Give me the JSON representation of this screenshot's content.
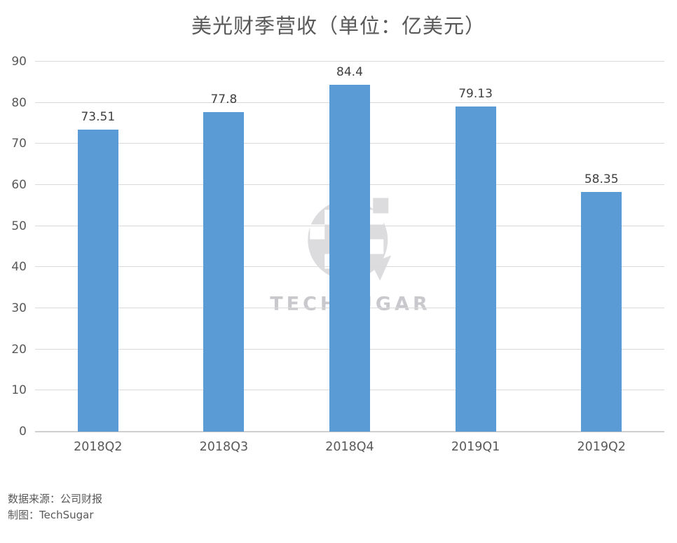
{
  "title": "美光财季营收（单位：亿美元）",
  "watermark": {
    "text": "TECHSUGAR"
  },
  "footer": {
    "source": "数据来源：公司财报",
    "credit": "制图：TechSugar"
  },
  "colors": {
    "bar": "#5B9BD5",
    "grid": "#D9D9D9",
    "axis": "#C6C6C6",
    "tick_label": "#595959",
    "data_label": "#404040",
    "title": "#595959",
    "watermark": "#C9C9CD",
    "watermark_fill": "#DCDCDF"
  },
  "chart_data": {
    "type": "bar",
    "title": "美光财季营收（单位：亿美元）",
    "categories": [
      "2018Q2",
      "2018Q3",
      "2018Q4",
      "2019Q1",
      "2019Q2"
    ],
    "values": [
      73.51,
      77.8,
      84.4,
      79.13,
      58.35
    ],
    "labels": [
      "73.51",
      "77.8",
      "84.4",
      "79.13",
      "58.35"
    ],
    "xlabel": "",
    "ylabel": "",
    "ylim": [
      0,
      90
    ],
    "yticks": [
      0,
      10,
      20,
      30,
      40,
      50,
      60,
      70,
      80,
      90
    ],
    "grid": true,
    "legend": false
  }
}
